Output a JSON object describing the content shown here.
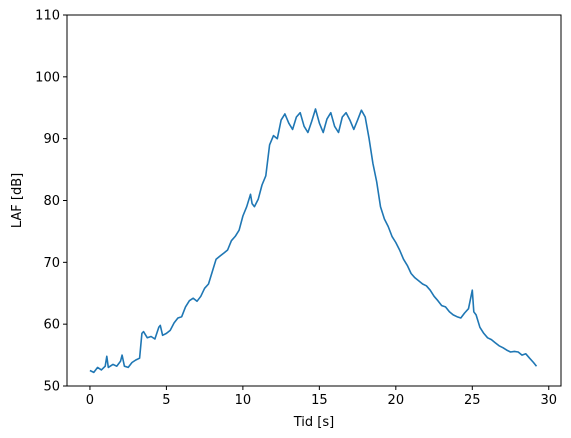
{
  "chart_data": {
    "type": "line",
    "title": "",
    "xlabel": "Tid [s]",
    "ylabel": "LAF [dB]",
    "xlim": [
      -1.5,
      30.8
    ],
    "ylim": [
      50,
      110
    ],
    "xticks": [
      0,
      5,
      10,
      15,
      20,
      25,
      30
    ],
    "yticks": [
      50,
      60,
      70,
      80,
      90,
      100,
      110
    ],
    "grid": false,
    "legend": "none",
    "series": [
      {
        "color": "#1f77b4",
        "x": [
          0.0,
          0.25,
          0.5,
          0.75,
          1.0,
          1.1,
          1.2,
          1.5,
          1.75,
          2.0,
          2.1,
          2.25,
          2.5,
          2.75,
          3.0,
          3.25,
          3.4,
          3.5,
          3.75,
          4.0,
          4.25,
          4.5,
          4.6,
          4.75,
          5.0,
          5.25,
          5.5,
          5.75,
          6.0,
          6.25,
          6.5,
          6.75,
          7.0,
          7.25,
          7.5,
          7.75,
          8.0,
          8.25,
          8.5,
          8.75,
          9.0,
          9.25,
          9.5,
          9.75,
          10.0,
          10.25,
          10.5,
          10.6,
          10.75,
          11.0,
          11.25,
          11.5,
          11.75,
          12.0,
          12.25,
          12.5,
          12.75,
          13.0,
          13.25,
          13.5,
          13.75,
          14.0,
          14.25,
          14.5,
          14.75,
          15.0,
          15.25,
          15.5,
          15.75,
          16.0,
          16.25,
          16.5,
          16.75,
          17.0,
          17.25,
          17.5,
          17.75,
          18.0,
          18.25,
          18.5,
          18.75,
          19.0,
          19.25,
          19.5,
          19.75,
          20.0,
          20.25,
          20.5,
          20.75,
          21.0,
          21.25,
          21.5,
          21.75,
          22.0,
          22.25,
          22.5,
          22.75,
          23.0,
          23.25,
          23.5,
          23.75,
          24.0,
          24.25,
          24.5,
          24.75,
          25.0,
          25.1,
          25.25,
          25.5,
          25.75,
          26.0,
          26.25,
          26.5,
          26.75,
          27.0,
          27.25,
          27.5,
          27.75,
          28.0,
          28.25,
          28.5,
          28.75,
          29.0,
          29.2
        ],
        "y": [
          52.5,
          52.2,
          53.0,
          52.6,
          53.2,
          54.8,
          53.0,
          53.5,
          53.2,
          54.0,
          55.0,
          53.2,
          53.0,
          53.8,
          54.2,
          54.5,
          58.5,
          58.8,
          57.8,
          58.0,
          57.6,
          59.5,
          59.8,
          58.2,
          58.5,
          59.0,
          60.2,
          61.0,
          61.2,
          62.8,
          63.8,
          64.2,
          63.7,
          64.5,
          65.8,
          66.5,
          68.5,
          70.5,
          71.0,
          71.5,
          72.0,
          73.5,
          74.2,
          75.2,
          77.5,
          79.0,
          81.0,
          79.5,
          79.0,
          80.2,
          82.5,
          84.0,
          89.0,
          90.5,
          90.0,
          93.0,
          94.0,
          92.5,
          91.5,
          93.5,
          94.2,
          92.0,
          91.0,
          92.8,
          94.8,
          92.5,
          91.0,
          93.2,
          94.2,
          92.0,
          91.0,
          93.5,
          94.2,
          93.0,
          91.5,
          93.0,
          94.6,
          93.5,
          90.0,
          86.0,
          83.0,
          79.0,
          77.0,
          75.8,
          74.2,
          73.2,
          72.0,
          70.5,
          69.5,
          68.2,
          67.5,
          67.0,
          66.5,
          66.2,
          65.5,
          64.5,
          63.8,
          63.0,
          62.8,
          62.0,
          61.5,
          61.2,
          61.0,
          61.8,
          62.5,
          65.5,
          62.0,
          61.5,
          59.5,
          58.5,
          57.8,
          57.5,
          57.0,
          56.5,
          56.2,
          55.8,
          55.5,
          55.6,
          55.5,
          55.0,
          55.2,
          54.5,
          53.8,
          53.2
        ]
      }
    ]
  }
}
